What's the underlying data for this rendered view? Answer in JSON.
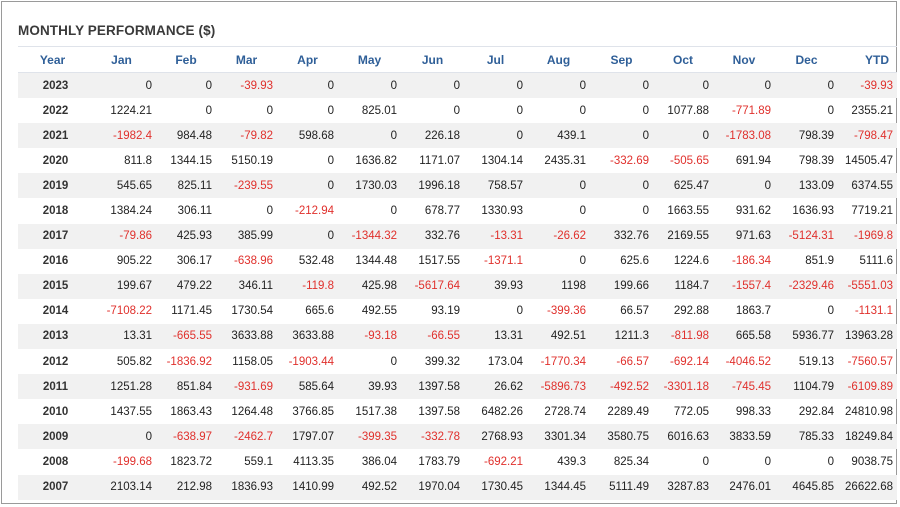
{
  "title": "MONTHLY PERFORMANCE ($)",
  "colors": {
    "header": "#2f5f98",
    "negative": "#e0302c",
    "stripe": "#f1f1f1"
  },
  "columns": [
    "Year",
    "Jan",
    "Feb",
    "Mar",
    "Apr",
    "May",
    "Jun",
    "Jul",
    "Aug",
    "Sep",
    "Oct",
    "Nov",
    "Dec",
    "YTD"
  ],
  "rows": [
    [
      "2023",
      "0",
      "0",
      "-39.93",
      "0",
      "0",
      "0",
      "0",
      "0",
      "0",
      "0",
      "0",
      "0",
      "-39.93"
    ],
    [
      "2022",
      "1224.21",
      "0",
      "0",
      "0",
      "825.01",
      "0",
      "0",
      "0",
      "0",
      "1077.88",
      "-771.89",
      "0",
      "2355.21"
    ],
    [
      "2021",
      "-1982.4",
      "984.48",
      "-79.82",
      "598.68",
      "0",
      "226.18",
      "0",
      "439.1",
      "0",
      "0",
      "-1783.08",
      "798.39",
      "-798.47"
    ],
    [
      "2020",
      "811.8",
      "1344.15",
      "5150.19",
      "0",
      "1636.82",
      "1171.07",
      "1304.14",
      "2435.31",
      "-332.69",
      "-505.65",
      "691.94",
      "798.39",
      "14505.47"
    ],
    [
      "2019",
      "545.65",
      "825.11",
      "-239.55",
      "0",
      "1730.03",
      "1996.18",
      "758.57",
      "0",
      "0",
      "625.47",
      "0",
      "133.09",
      "6374.55"
    ],
    [
      "2018",
      "1384.24",
      "306.11",
      "0",
      "-212.94",
      "0",
      "678.77",
      "1330.93",
      "0",
      "0",
      "1663.55",
      "931.62",
      "1636.93",
      "7719.21"
    ],
    [
      "2017",
      "-79.86",
      "425.93",
      "385.99",
      "0",
      "-1344.32",
      "332.76",
      "-13.31",
      "-26.62",
      "332.76",
      "2169.55",
      "971.63",
      "-5124.31",
      "-1969.8"
    ],
    [
      "2016",
      "905.22",
      "306.17",
      "-638.96",
      "532.48",
      "1344.48",
      "1517.55",
      "-1371.1",
      "0",
      "625.6",
      "1224.6",
      "-186.34",
      "851.9",
      "5111.6"
    ],
    [
      "2015",
      "199.67",
      "479.22",
      "346.11",
      "-119.8",
      "425.98",
      "-5617.64",
      "39.93",
      "1198",
      "199.66",
      "1184.7",
      "-1557.4",
      "-2329.46",
      "-5551.03"
    ],
    [
      "2014",
      "-7108.22",
      "1171.45",
      "1730.54",
      "665.6",
      "492.55",
      "93.19",
      "0",
      "-399.36",
      "66.57",
      "292.88",
      "1863.7",
      "0",
      "-1131.1"
    ],
    [
      "2013",
      "13.31",
      "-665.55",
      "3633.88",
      "3633.88",
      "-93.18",
      "-66.55",
      "13.31",
      "492.51",
      "1211.3",
      "-811.98",
      "665.58",
      "5936.77",
      "13963.28"
    ],
    [
      "2012",
      "505.82",
      "-1836.92",
      "1158.05",
      "-1903.44",
      "0",
      "399.32",
      "173.04",
      "-1770.34",
      "-66.57",
      "-692.14",
      "-4046.52",
      "519.13",
      "-7560.57"
    ],
    [
      "2011",
      "1251.28",
      "851.84",
      "-931.69",
      "585.64",
      "39.93",
      "1397.58",
      "26.62",
      "-5896.73",
      "-492.52",
      "-3301.18",
      "-745.45",
      "1104.79",
      "-6109.89"
    ],
    [
      "2010",
      "1437.55",
      "1863.43",
      "1264.48",
      "3766.85",
      "1517.38",
      "1397.58",
      "6482.26",
      "2728.74",
      "2289.49",
      "772.05",
      "998.33",
      "292.84",
      "24810.98"
    ],
    [
      "2009",
      "0",
      "-638.97",
      "-2462.7",
      "1797.07",
      "-399.35",
      "-332.78",
      "2768.93",
      "3301.34",
      "3580.75",
      "6016.63",
      "3833.59",
      "785.33",
      "18249.84"
    ],
    [
      "2008",
      "-199.68",
      "1823.72",
      "559.1",
      "4113.35",
      "386.04",
      "1783.79",
      "-692.21",
      "439.3",
      "825.34",
      "0",
      "0",
      "0",
      "9038.75"
    ],
    [
      "2007",
      "2103.14",
      "212.98",
      "1836.93",
      "1410.99",
      "492.52",
      "1970.04",
      "1730.45",
      "1344.45",
      "5111.49",
      "3287.83",
      "2476.01",
      "4645.85",
      "26622.68"
    ]
  ]
}
